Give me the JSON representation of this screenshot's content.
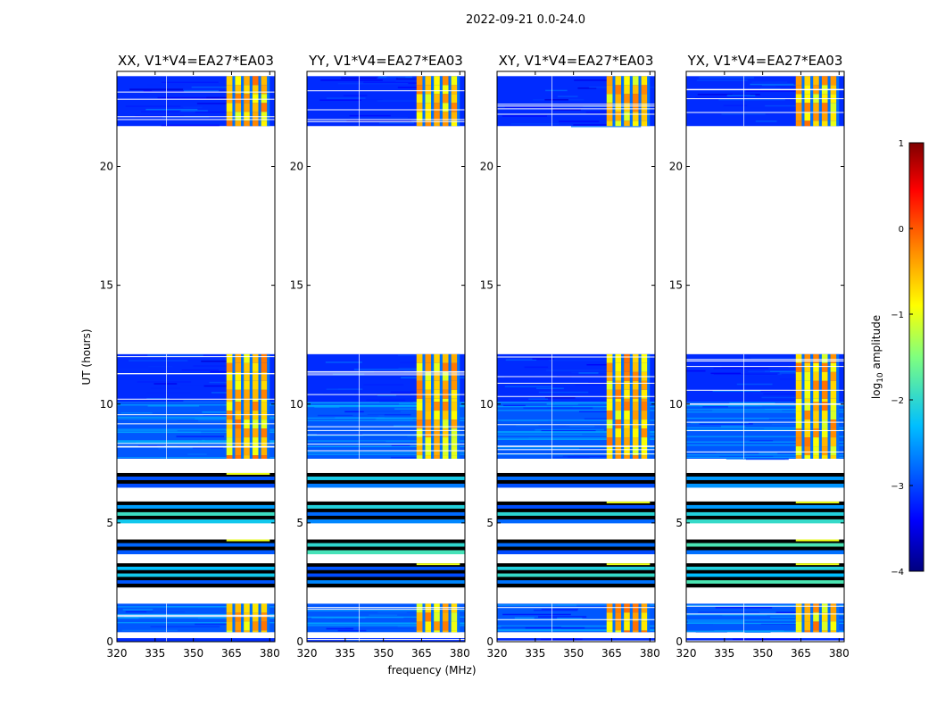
{
  "chart_data": {
    "type": "heatmap",
    "suptitle": "2022-09-21 0.0-24.0",
    "xlabel": "frequency (MHz)",
    "ylabel": "UT (hours)",
    "xlim": [
      320,
      382
    ],
    "ylim": [
      0,
      24
    ],
    "xticks": [
      320,
      335,
      350,
      365,
      380
    ],
    "yticks": [
      0,
      5,
      10,
      15,
      20
    ],
    "colormap": "jet",
    "colorbar": {
      "label": "log10 amplitude",
      "label_text": "log",
      "label_sub": "10",
      "label_rest": " amplitude",
      "min": -4,
      "max": 1,
      "ticks": [
        "1",
        "0",
        "−1",
        "−2",
        "−3",
        "−4"
      ],
      "tick_values": [
        1,
        0,
        -1,
        -2,
        -3,
        -4
      ]
    },
    "panels": [
      {
        "title": "XX, V1*V4=EA27*EA03"
      },
      {
        "title": "YY, V1*V4=EA27*EA03"
      },
      {
        "title": "XY, V1*V4=EA27*EA03"
      },
      {
        "title": "YX, V1*V4=EA27*EA03"
      }
    ],
    "observed_ut_blocks": [
      {
        "start": 21.7,
        "end": 23.8,
        "level": "low",
        "rfi_band": true
      },
      {
        "start": 10.1,
        "end": 12.1,
        "level": "low",
        "rfi_band": true
      },
      {
        "start": 7.7,
        "end": 10.1,
        "level": "mixed",
        "rfi_band": true
      },
      {
        "start": 6.5,
        "end": 7.1,
        "level": "flagged_dark",
        "rfi_band": false
      },
      {
        "start": 5.0,
        "end": 5.9,
        "level": "flagged_dark",
        "rfi_band": false
      },
      {
        "start": 3.7,
        "end": 4.3,
        "level": "flagged_dark",
        "rfi_band": false
      },
      {
        "start": 2.3,
        "end": 3.3,
        "level": "flagged_dark",
        "rfi_band": false
      },
      {
        "start": 0.4,
        "end": 1.6,
        "level": "mixed",
        "rfi_band": true
      },
      {
        "start": 0.0,
        "end": 0.15,
        "level": "low",
        "rfi_band": false
      }
    ],
    "rfi_frequency_range_mhz": [
      363,
      380
    ]
  }
}
